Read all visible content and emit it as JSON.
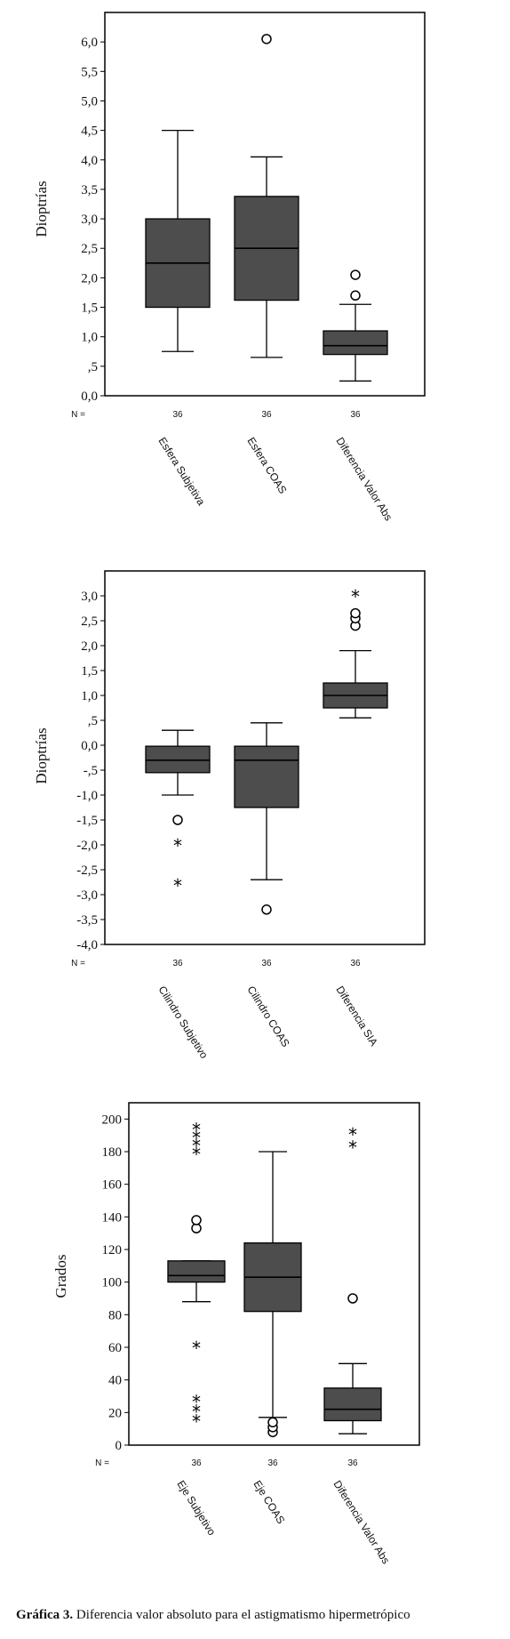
{
  "chart_data": [
    {
      "type": "boxplot",
      "ylabel": "Dioptrías",
      "ylim": [
        0,
        6.5
      ],
      "yticks": [
        "0,0",
        ",5",
        "1,0",
        "1,5",
        "2,0",
        "2,5",
        "3,0",
        "3,5",
        "4,0",
        "4,5",
        "5,0",
        "5,5",
        "6,0"
      ],
      "n_label": "N =",
      "categories": [
        "Esfera Subjetiva",
        "Esfera COAS",
        "Diferencia Valor Abs"
      ],
      "n": [
        "36",
        "36",
        "36"
      ],
      "boxes": [
        {
          "min": 0.75,
          "q1": 1.5,
          "median": 2.25,
          "q3": 3.0,
          "max": 4.5,
          "outliers": [],
          "extremes": []
        },
        {
          "min": 0.65,
          "q1": 1.62,
          "median": 2.5,
          "q3": 3.38,
          "max": 4.05,
          "outliers": [
            6.05
          ],
          "extremes": []
        },
        {
          "min": 0.25,
          "q1": 0.7,
          "median": 0.85,
          "q3": 1.1,
          "max": 1.55,
          "outliers": [
            1.7,
            2.05
          ],
          "extremes": []
        }
      ]
    },
    {
      "type": "boxplot",
      "ylabel": "Dioptrías",
      "ylim": [
        -4.0,
        3.5
      ],
      "yticks": [
        "-4,0",
        "-3,5",
        "-3,0",
        "-2,5",
        "-2,0",
        "-1,5",
        "-1,0",
        "-,5",
        "0,0",
        ",5",
        "1,0",
        "1,5",
        "2,0",
        "2,5",
        "3,0"
      ],
      "n_label": "N =",
      "categories": [
        "Cilindro Subjetivo",
        "Cilindro COAS",
        "Diferencia SIA"
      ],
      "n": [
        "36",
        "36",
        "36"
      ],
      "boxes": [
        {
          "min": -1.0,
          "q1": -0.55,
          "median": -0.3,
          "q3": -0.02,
          "max": 0.3,
          "outliers": [
            -1.5
          ],
          "extremes": [
            -2.0,
            -2.8
          ]
        },
        {
          "min": -2.7,
          "q1": -1.25,
          "median": -0.3,
          "q3": -0.02,
          "max": 0.45,
          "outliers": [
            -3.3
          ],
          "extremes": []
        },
        {
          "min": 0.55,
          "q1": 0.75,
          "median": 1.0,
          "q3": 1.25,
          "max": 1.9,
          "outliers": [
            2.4,
            2.55,
            2.65
          ],
          "extremes": [
            3.0
          ]
        }
      ]
    },
    {
      "type": "boxplot",
      "ylabel": "Grados",
      "ylim": [
        0,
        210
      ],
      "yticks": [
        "0",
        "20",
        "40",
        "60",
        "80",
        "100",
        "120",
        "140",
        "160",
        "180",
        "200"
      ],
      "n_label": "N =",
      "categories": [
        "Eje Subjetivo",
        "Eje COAS",
        "Diferencia Valor Abs"
      ],
      "n": [
        "36",
        "36",
        "36"
      ],
      "boxes": [
        {
          "min": 88,
          "q1": 100,
          "median": 104,
          "q3": 113,
          "max": 113,
          "outliers": [
            133,
            138
          ],
          "extremes": [
            179,
            184,
            189,
            194,
            60,
            27,
            21,
            15
          ]
        },
        {
          "min": 17,
          "q1": 82,
          "median": 103,
          "q3": 124,
          "max": 180,
          "outliers": [
            8,
            11,
            14
          ],
          "extremes": []
        },
        {
          "min": 7,
          "q1": 15,
          "median": 22,
          "q3": 35,
          "max": 50,
          "outliers": [
            90
          ],
          "extremes": [
            183,
            191
          ]
        }
      ]
    }
  ],
  "caption": {
    "label": "Gráfica 3.",
    "text": "Diferencia valor absoluto para el astigmatismo hipermetrópico"
  }
}
